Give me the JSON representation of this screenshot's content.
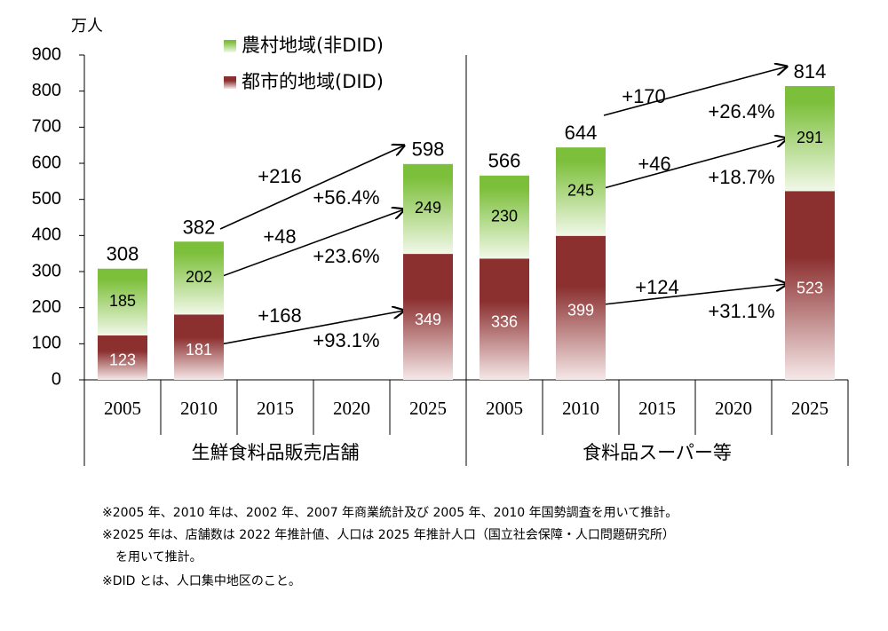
{
  "chart_data": {
    "type": "stacked-bar",
    "y_unit": "万人",
    "groups": [
      "生鮮食料品販売店舗",
      "食料品スーパー等"
    ],
    "categories": [
      "2005",
      "2010",
      "2015",
      "2020",
      "2025",
      "2005",
      "2010",
      "2015",
      "2020",
      "2025"
    ],
    "series": [
      {
        "name": "都市的地域(DID)",
        "color": "#8b2f2f",
        "values": [
          123,
          181,
          null,
          null,
          349,
          336,
          399,
          null,
          null,
          523
        ]
      },
      {
        "name": "農村地域(非DID)",
        "color": "#7cbf3a",
        "values": [
          185,
          202,
          null,
          null,
          249,
          230,
          245,
          null,
          null,
          291
        ]
      }
    ],
    "totals": [
      308,
      382,
      null,
      null,
      598,
      566,
      644,
      null,
      null,
      814
    ],
    "ylim": [
      0,
      900
    ],
    "yticks": [
      0,
      100,
      200,
      300,
      400,
      500,
      600,
      700,
      800,
      900
    ],
    "annotations": [
      "+216",
      "+56.4%",
      "+48",
      "+23.6%",
      "+168",
      "+93.1%",
      "+170",
      "+26.4%",
      "+46",
      "+18.7%",
      "+124",
      "+31.1%"
    ],
    "notes": [
      "※2005 年、2010 年は、2002 年、2007 年商業統計及び 2005 年、2010 年国勢調査を用いて推計。",
      "※2025 年は、店舗数は 2022 年推計値、人口は 2025 年推計人口（国立社会保障・人口問題研究所）",
      "を用いて推計。",
      "※DID とは、人口集中地区のこと。"
    ]
  }
}
